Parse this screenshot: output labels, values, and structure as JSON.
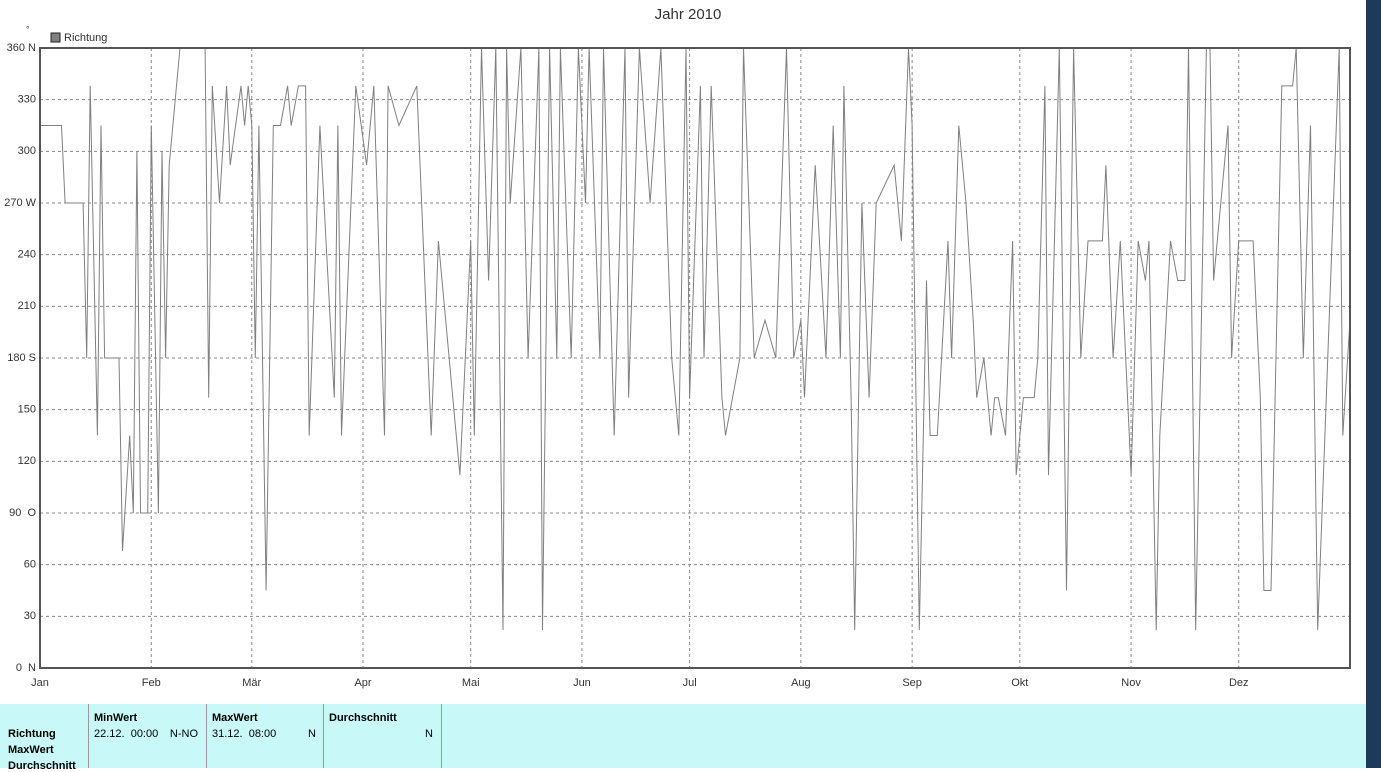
{
  "chart_data": {
    "type": "line",
    "title": "Jahr 2010",
    "y_unit": "°",
    "x": [
      0,
      6,
      7,
      12,
      13,
      14,
      16,
      17,
      18,
      22,
      23,
      25,
      26,
      27,
      28,
      30,
      31,
      33,
      34,
      35,
      36,
      39,
      46,
      47,
      48,
      50,
      52,
      53,
      56,
      57,
      58,
      59,
      60,
      61,
      63,
      65,
      67,
      69,
      70,
      72,
      74,
      75,
      78,
      82,
      83,
      84,
      88,
      91,
      93,
      96,
      97,
      100,
      105,
      109,
      111,
      117,
      120,
      121,
      123,
      125,
      127,
      129,
      130,
      131,
      134,
      136,
      139,
      140,
      142,
      144,
      145,
      148,
      150,
      152,
      153,
      156,
      157,
      160,
      163,
      164,
      167,
      170,
      173,
      176,
      178,
      180,
      181,
      184,
      185,
      187,
      190,
      191,
      195,
      196,
      199,
      202,
      205,
      208,
      210,
      212,
      213,
      216,
      219,
      221,
      223,
      224,
      226,
      227,
      229,
      231,
      233,
      238,
      240,
      242,
      243,
      245,
      247,
      248,
      250,
      253,
      254,
      256,
      258,
      260,
      261,
      263,
      265,
      266,
      267,
      269,
      271,
      272,
      274,
      277,
      278,
      280,
      281,
      284,
      286,
      288,
      290,
      292,
      296,
      297,
      299,
      301,
      304,
      306,
      308,
      309,
      311,
      312,
      315,
      317,
      319,
      320,
      322,
      325,
      326,
      327,
      331,
      332,
      334,
      338,
      340,
      341,
      343,
      346,
      349,
      350,
      352,
      354,
      356,
      362,
      363,
      365
    ],
    "series": [
      {
        "name": "Richtung",
        "color": "#808080",
        "values": [
          315,
          315,
          270,
          270,
          180,
          338,
          135,
          315,
          180,
          180,
          68,
          135,
          90,
          300,
          90,
          90,
          315,
          90,
          300,
          180,
          292,
          360,
          360,
          157,
          338,
          270,
          338,
          292,
          338,
          315,
          338,
          315,
          180,
          315,
          45,
          315,
          315,
          338,
          315,
          338,
          338,
          135,
          315,
          157,
          315,
          135,
          338,
          292,
          338,
          135,
          338,
          315,
          338,
          135,
          248,
          112,
          248,
          135,
          360,
          225,
          360,
          22,
          360,
          270,
          360,
          180,
          360,
          22,
          360,
          180,
          360,
          180,
          360,
          270,
          360,
          180,
          360,
          135,
          360,
          157,
          360,
          270,
          360,
          180,
          135,
          360,
          157,
          338,
          180,
          338,
          157,
          135,
          180,
          360,
          180,
          202,
          180,
          360,
          180,
          202,
          157,
          292,
          180,
          315,
          180,
          338,
          157,
          22,
          270,
          157,
          270,
          292,
          248,
          360,
          315,
          22,
          225,
          135,
          135,
          248,
          180,
          315,
          270,
          202,
          157,
          180,
          135,
          157,
          157,
          135,
          248,
          112,
          157,
          157,
          180,
          338,
          112,
          360,
          45,
          360,
          180,
          248,
          248,
          292,
          180,
          248,
          112,
          248,
          225,
          248,
          22,
          135,
          248,
          225,
          225,
          360,
          22,
          360,
          360,
          225,
          315,
          180,
          248,
          248,
          157,
          45,
          45,
          338,
          338,
          360,
          180,
          315,
          22,
          360,
          135,
          202
        ]
      }
    ],
    "xlim": [
      0,
      365
    ],
    "xticks": [
      {
        "value": 0,
        "label": "Jan"
      },
      {
        "value": 31,
        "label": "Feb"
      },
      {
        "value": 59,
        "label": "Mär"
      },
      {
        "value": 90,
        "label": "Apr"
      },
      {
        "value": 120,
        "label": "Mai"
      },
      {
        "value": 151,
        "label": "Jun"
      },
      {
        "value": 181,
        "label": "Jul"
      },
      {
        "value": 212,
        "label": "Aug"
      },
      {
        "value": 243,
        "label": "Sep"
      },
      {
        "value": 273,
        "label": "Okt"
      },
      {
        "value": 304,
        "label": "Nov"
      },
      {
        "value": 334,
        "label": "Dez"
      }
    ],
    "ylim": [
      0,
      360
    ],
    "yticks": [
      {
        "value": 360,
        "label": "360 N"
      },
      330,
      300,
      {
        "value": 270,
        "label": "270 W"
      },
      240,
      210,
      {
        "value": 180,
        "label": "180 S"
      },
      150,
      120,
      {
        "value": 90,
        "label": "90  O"
      },
      60,
      30,
      {
        "value": 0,
        "label": "0  N"
      }
    ],
    "grid": true
  },
  "summary": {
    "row_labels": [
      "Richtung",
      "MaxWert",
      "Durchschnitt"
    ],
    "columns": [
      {
        "header": "MinWert",
        "date": "22.12.  00:00",
        "value": "N-NO"
      },
      {
        "header": "MaxWert",
        "date": "31.12.  08:00",
        "value": "N"
      },
      {
        "header": "Durchschnitt",
        "value": "N"
      }
    ]
  }
}
